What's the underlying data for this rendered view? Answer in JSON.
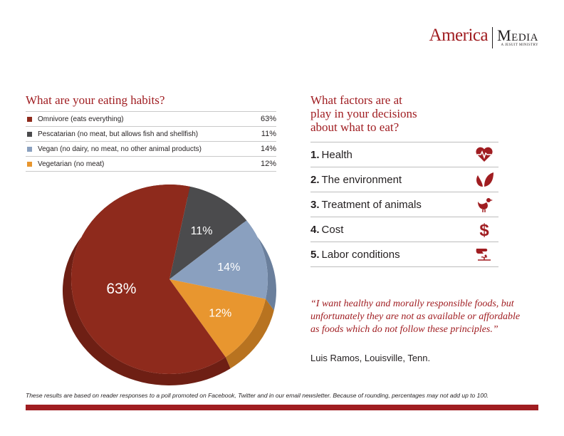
{
  "brand": {
    "name": "America",
    "media": "Media",
    "tagline": "A JESUIT MINISTRY"
  },
  "question1": "What are your eating habits?",
  "question2_lines": [
    "What factors are at",
    "play in your decisions",
    "about what to eat?"
  ],
  "chart_data": {
    "type": "pie",
    "categories": [
      "Omnivore (eats everything)",
      "Pescatarian (no meat, but allows fish and shellfish)",
      "Vegan (no dairy, no meat, no other animal products)",
      "Vegetarian (no meat)"
    ],
    "values": [
      63,
      11,
      14,
      12
    ],
    "labels": [
      "63%",
      "11%",
      "14%",
      "12%"
    ],
    "colors": [
      "#8e2a1c",
      "#4b4b4d",
      "#8aa0bf",
      "#e8962f"
    ],
    "side_colors": [
      "#6e1f14",
      "#2b2b2b",
      "#6a7f9c",
      "#b87320"
    ],
    "legend_placement": "top"
  },
  "factors": [
    {
      "rank": "1.",
      "label": "Health",
      "icon": "heart-pulse-icon"
    },
    {
      "rank": "2.",
      "label": "The environment",
      "icon": "leaf-icon"
    },
    {
      "rank": "3.",
      "label": "Treatment of animals",
      "icon": "chicken-icon"
    },
    {
      "rank": "4.",
      "label": "Cost",
      "icon": "dollar-icon"
    },
    {
      "rank": "5.",
      "label": "Labor conditions",
      "icon": "hand-seed-icon"
    }
  ],
  "quote": "“I want healthy and morally responsible foods, but unfortunately they are not as available or affordable as foods which do not follow these principles.”",
  "quote_author": "Luis Ramos, Louisville, Tenn.",
  "footnote": "These results are based on reader responses to a poll promoted on Facebook, Twitter and in our email newsletter. Because of rounding, percentages may not add up to 100."
}
